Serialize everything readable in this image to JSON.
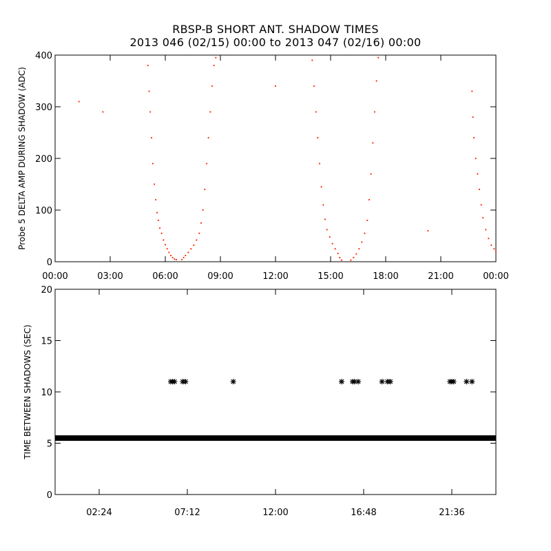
{
  "header": {
    "title": "RBSP-B SHORT ANT. SHADOW TIMES",
    "subtitle": "2013 046 (02/15) 00:00 to 2013 047 (02/16) 00:00"
  },
  "colors": {
    "top_series": "#ff2a00",
    "bottom_series": "#000000",
    "axes": "#000000"
  },
  "chart_data": [
    {
      "type": "scatter",
      "title": "RBSP-B SHORT ANT. SHADOW TIMES",
      "xlabel": "",
      "ylabel": "Probe 5 DELTA AMP DURING SHADOW (ADC)",
      "xlim": [
        0,
        24
      ],
      "ylim": [
        0,
        400
      ],
      "xticks": [
        0,
        3,
        6,
        9,
        12,
        15,
        18,
        21,
        24
      ],
      "xtick_labels": [
        "00:00",
        "03:00",
        "06:00",
        "09:00",
        "12:00",
        "15:00",
        "18:00",
        "21:00",
        "00:00"
      ],
      "yticks": [
        0,
        100,
        200,
        300,
        400
      ],
      "ytick_labels": [
        "0",
        "100",
        "200",
        "300",
        "400"
      ],
      "marker": "dot",
      "series": [
        {
          "values_note": "",
          "points": [
            [
              1.3,
              310
            ],
            [
              2.6,
              290
            ],
            [
              12.0,
              340
            ],
            [
              20.3,
              60
            ],
            [
              5.05,
              380
            ],
            [
              5.12,
              330
            ],
            [
              5.18,
              290
            ],
            [
              5.25,
              240
            ],
            [
              5.32,
              190
            ],
            [
              5.4,
              150
            ],
            [
              5.48,
              120
            ],
            [
              5.55,
              95
            ],
            [
              5.62,
              80
            ],
            [
              5.7,
              65
            ],
            [
              5.8,
              55
            ],
            [
              5.9,
              42
            ],
            [
              6.0,
              33
            ],
            [
              6.1,
              25
            ],
            [
              6.2,
              18
            ],
            [
              6.3,
              12
            ],
            [
              6.4,
              8
            ],
            [
              6.5,
              5
            ],
            [
              6.6,
              4
            ],
            [
              6.9,
              4
            ],
            [
              7.0,
              8
            ],
            [
              7.1,
              12
            ],
            [
              7.25,
              18
            ],
            [
              7.4,
              25
            ],
            [
              7.55,
              32
            ],
            [
              7.7,
              42
            ],
            [
              7.85,
              55
            ],
            [
              7.95,
              75
            ],
            [
              8.05,
              100
            ],
            [
              8.15,
              140
            ],
            [
              8.25,
              190
            ],
            [
              8.35,
              240
            ],
            [
              8.45,
              290
            ],
            [
              8.55,
              340
            ],
            [
              8.65,
              380
            ],
            [
              8.75,
              395
            ],
            [
              14.0,
              390
            ],
            [
              14.1,
              340
            ],
            [
              14.2,
              290
            ],
            [
              14.3,
              240
            ],
            [
              14.4,
              190
            ],
            [
              14.5,
              145
            ],
            [
              14.6,
              110
            ],
            [
              14.7,
              82
            ],
            [
              14.8,
              62
            ],
            [
              14.95,
              48
            ],
            [
              15.1,
              35
            ],
            [
              15.25,
              25
            ],
            [
              15.4,
              16
            ],
            [
              15.5,
              8
            ],
            [
              15.6,
              3
            ],
            [
              16.1,
              3
            ],
            [
              16.25,
              8
            ],
            [
              16.4,
              15
            ],
            [
              16.55,
              25
            ],
            [
              16.7,
              38
            ],
            [
              16.85,
              55
            ],
            [
              17.0,
              80
            ],
            [
              17.1,
              120
            ],
            [
              17.2,
              170
            ],
            [
              17.3,
              230
            ],
            [
              17.4,
              290
            ],
            [
              17.5,
              350
            ],
            [
              17.6,
              395
            ],
            [
              22.7,
              330
            ],
            [
              22.75,
              280
            ],
            [
              22.8,
              240
            ],
            [
              22.9,
              200
            ],
            [
              23.0,
              170
            ],
            [
              23.1,
              140
            ],
            [
              23.2,
              110
            ],
            [
              23.3,
              85
            ],
            [
              23.45,
              62
            ],
            [
              23.6,
              45
            ],
            [
              23.75,
              32
            ],
            [
              23.9,
              25
            ],
            [
              24.0,
              20
            ]
          ]
        }
      ]
    },
    {
      "type": "scatter",
      "xlabel": "",
      "ylabel": "TIME BETWEEN SHADOWS (SEC)",
      "xlim": [
        0,
        24
      ],
      "ylim": [
        0,
        20
      ],
      "xticks": [
        2.4,
        7.2,
        12.0,
        16.8,
        21.6
      ],
      "xtick_labels": [
        "02:24",
        "07:12",
        "12:00",
        "16:48",
        "21:36"
      ],
      "yticks": [
        0,
        5,
        10,
        15,
        20
      ],
      "ytick_labels": [
        "0",
        "5",
        "10",
        "15",
        "20"
      ],
      "marker": "asterisk",
      "series": [
        {
          "baseline_value": 5.5,
          "baseline_range": [
            0,
            24
          ],
          "points": [
            [
              6.3,
              11
            ],
            [
              6.4,
              11
            ],
            [
              6.5,
              11
            ],
            [
              6.95,
              11
            ],
            [
              7.1,
              11
            ],
            [
              9.7,
              11
            ],
            [
              15.6,
              11
            ],
            [
              16.2,
              11
            ],
            [
              16.3,
              11
            ],
            [
              16.5,
              11
            ],
            [
              17.8,
              11
            ],
            [
              18.1,
              11
            ],
            [
              18.25,
              11
            ],
            [
              21.5,
              11
            ],
            [
              21.6,
              11
            ],
            [
              21.7,
              11
            ],
            [
              22.4,
              11
            ],
            [
              22.7,
              11
            ]
          ]
        }
      ]
    }
  ]
}
